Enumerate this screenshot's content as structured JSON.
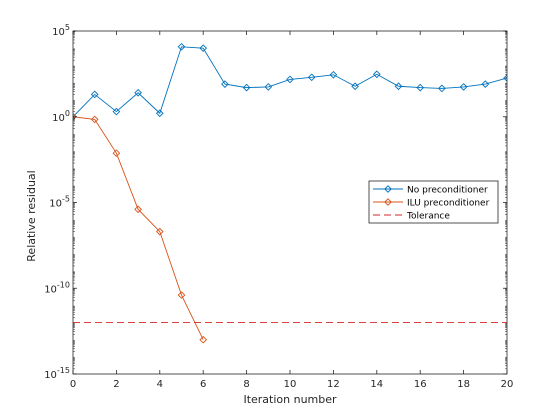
{
  "chart_data": {
    "type": "line",
    "xlabel": "Iteration number",
    "ylabel": "Relative residual",
    "xlim": [
      0,
      20
    ],
    "ylim": [
      1e-15,
      100000.0
    ],
    "yscale": "log",
    "grid": false,
    "legend_position": "right, middle",
    "x_ticks": [
      0,
      2,
      4,
      6,
      8,
      10,
      12,
      14,
      16,
      18,
      20
    ],
    "y_ticks": [
      {
        "mantissa": "10",
        "exponent": "5",
        "value": 100000.0
      },
      {
        "mantissa": "10",
        "exponent": "0",
        "value": 1
      },
      {
        "mantissa": "10",
        "exponent": "-5",
        "value": 1e-05
      },
      {
        "mantissa": "10",
        "exponent": "-10",
        "value": 1e-10
      },
      {
        "mantissa": "10",
        "exponent": "-15",
        "value": 1e-15
      }
    ],
    "series": [
      {
        "name": "No preconditioner",
        "color": "#0072BD",
        "marker": "diamond",
        "x": [
          0,
          1,
          2,
          3,
          4,
          5,
          6,
          7,
          8,
          9,
          10,
          11,
          12,
          13,
          14,
          15,
          16,
          17,
          18,
          19,
          20
        ],
        "y": [
          1,
          20,
          2,
          25,
          1.6,
          12000,
          10000,
          80,
          50,
          55,
          150,
          200,
          280,
          60,
          300,
          60,
          50,
          45,
          55,
          80,
          180
        ]
      },
      {
        "name": "ILU preconditioner",
        "color": "#D95319",
        "marker": "diamond",
        "x": [
          0,
          1,
          2,
          3,
          4,
          5,
          6
        ],
        "y": [
          1,
          0.7,
          0.0075,
          4e-06,
          2e-07,
          4e-11,
          1e-13
        ]
      },
      {
        "name": "Tolerance",
        "color": "#D62728",
        "marker": "none",
        "dashed": true,
        "x": [
          0,
          20
        ],
        "y": [
          1e-12,
          1e-12
        ]
      }
    ]
  }
}
